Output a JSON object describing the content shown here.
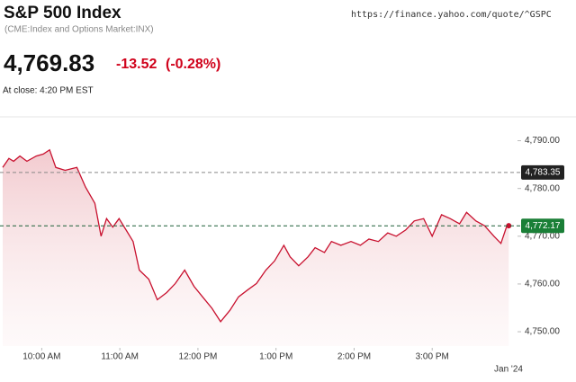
{
  "header": {
    "title": "S&P 500 Index",
    "url": "https://finance.yahoo.com/quote/^GSPC",
    "subtitle": "(CME:Index and Options Market:INX)",
    "price": "4,769.83",
    "change": "-13.52",
    "change_percent": "(-0.28%)",
    "close_note": "At close: 4:20 PM EST"
  },
  "chart_data": {
    "type": "line",
    "x": [
      9.5,
      9.58,
      9.64,
      9.72,
      9.81,
      9.93,
      10.02,
      10.1,
      10.18,
      10.3,
      10.45,
      10.56,
      10.68,
      10.76,
      10.83,
      10.91,
      10.99,
      11.08,
      11.17,
      11.25,
      11.37,
      11.48,
      11.6,
      11.71,
      11.83,
      11.95,
      12.06,
      12.18,
      12.29,
      12.41,
      12.52,
      12.64,
      12.75,
      12.87,
      12.98,
      13.1,
      13.18,
      13.29,
      13.41,
      13.5,
      13.62,
      13.71,
      13.83,
      13.96,
      14.08,
      14.19,
      14.31,
      14.43,
      14.54,
      14.66,
      14.77,
      14.89,
      15.0,
      15.12,
      15.23,
      15.35,
      15.44,
      15.56,
      15.67,
      15.79,
      15.88,
      15.95,
      15.98
    ],
    "series": [
      {
        "color": "#c8102e",
        "values": [
          4784.4,
          4786.3,
          4785.7,
          4786.8,
          4785.7,
          4786.8,
          4787.2,
          4788.1,
          4784.4,
          4783.8,
          4784.4,
          4780.3,
          4776.9,
          4770.0,
          4773.7,
          4771.9,
          4773.7,
          4771.3,
          4768.9,
          4762.9,
          4761.0,
          4756.7,
          4758.2,
          4760.1,
          4762.9,
          4759.5,
          4757.3,
          4754.9,
          4752.1,
          4754.5,
          4757.3,
          4758.8,
          4760.1,
          4762.9,
          4764.8,
          4768.1,
          4765.7,
          4763.8,
          4765.7,
          4767.6,
          4766.6,
          4768.9,
          4768.1,
          4768.9,
          4768.1,
          4769.4,
          4768.9,
          4770.7,
          4770.0,
          4771.3,
          4773.2,
          4773.7,
          4770.0,
          4774.5,
          4773.7,
          4772.6,
          4775.0,
          4773.2,
          4772.2,
          4770.0,
          4768.5,
          4771.9,
          4772.2
        ]
      }
    ],
    "xlim": [
      9.5,
      16.0
    ],
    "xticks": [
      {
        "value": 10,
        "label": "10:00 AM"
      },
      {
        "value": 11,
        "label": "11:00 AM"
      },
      {
        "value": 12,
        "label": "12:00 PM"
      },
      {
        "value": 13,
        "label": "1:00 PM"
      },
      {
        "value": 14,
        "label": "2:00 PM"
      },
      {
        "value": 15,
        "label": "3:00 PM"
      }
    ],
    "ylim": [
      4747,
      4795
    ],
    "yticks": [
      {
        "value": 4750,
        "label": "4,750.00"
      },
      {
        "value": 4760,
        "label": "4,760.00"
      },
      {
        "value": 4770,
        "label": "4,770.00"
      },
      {
        "value": 4780,
        "label": "4,780.00"
      },
      {
        "value": 4790,
        "label": "4,790.00"
      }
    ],
    "reference_lines": [
      {
        "value": 4783.35,
        "label": "4,783.35",
        "color": "#222222",
        "line_color": "#888888"
      },
      {
        "value": 4772.17,
        "label": "4,772.17",
        "color": "#1a7f37",
        "line_color": "#1a5f37"
      }
    ],
    "date_label": "Jan '24"
  }
}
